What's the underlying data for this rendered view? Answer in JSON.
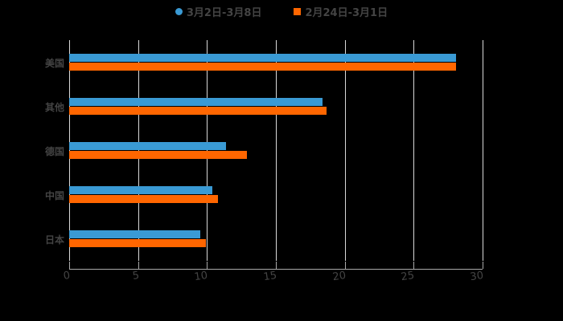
{
  "chart_data": {
    "type": "bar",
    "orientation": "horizontal",
    "title": "",
    "xlabel": "",
    "ylabel": "",
    "xlim": [
      0,
      30
    ],
    "x_ticks": [
      "0",
      "5",
      "10",
      "15",
      "20",
      "25",
      "30"
    ],
    "grid": true,
    "legend_position": "top",
    "categories": [
      "美国",
      "其他",
      "德国",
      "中国",
      "日本"
    ],
    "series": [
      {
        "name": "3月2日-3月8日",
        "color": "#3a9ad4",
        "values": [
          28.1,
          18.4,
          11.4,
          10.4,
          9.5
        ]
      },
      {
        "name": "2月24日-3月1日",
        "color": "#ff6600",
        "values": [
          28.1,
          18.7,
          12.9,
          10.8,
          9.9
        ]
      }
    ]
  },
  "legend": {
    "items": [
      {
        "label": "3月2日-3月8日",
        "color": "#3a9ad4",
        "marker": "circle"
      },
      {
        "label": "2月24日-3月1日",
        "color": "#ff6600",
        "marker": "square"
      }
    ]
  }
}
